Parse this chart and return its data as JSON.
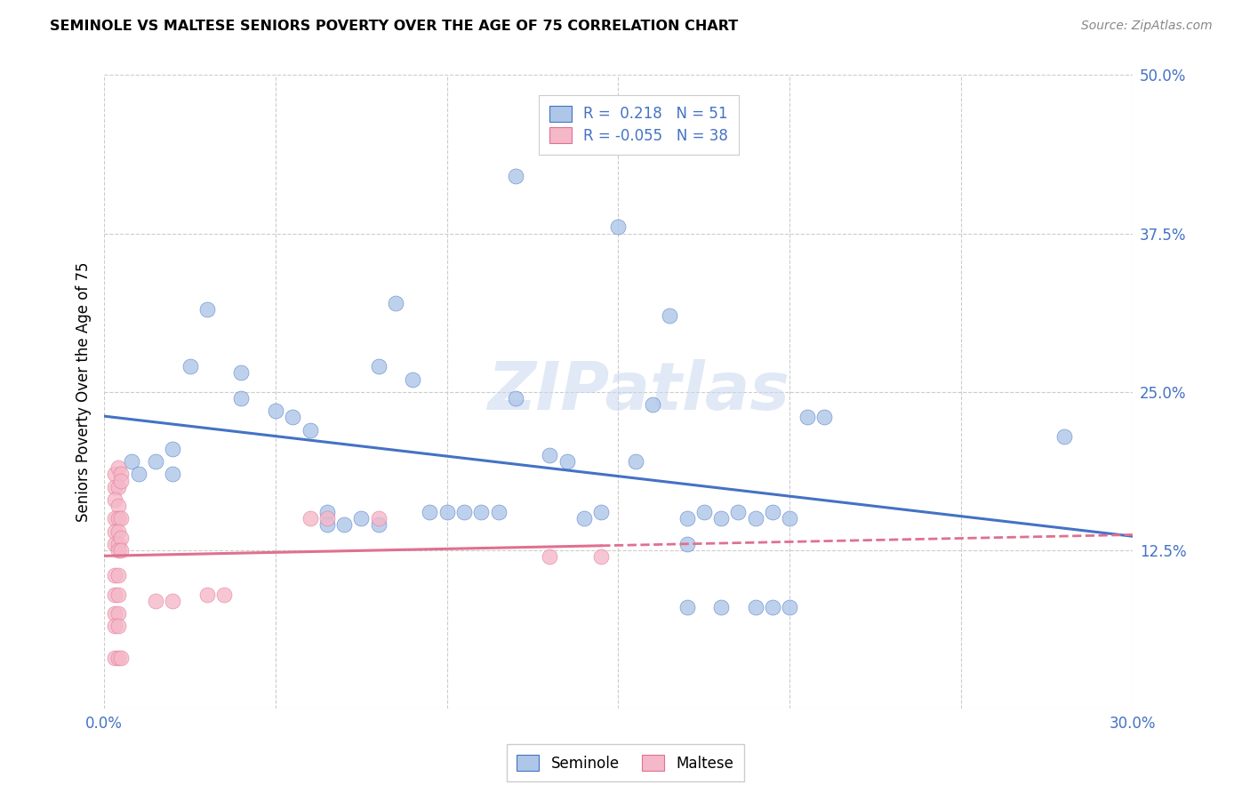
{
  "title": "SEMINOLE VS MALTESE SENIORS POVERTY OVER THE AGE OF 75 CORRELATION CHART",
  "source": "Source: ZipAtlas.com",
  "ylabel": "Seniors Poverty Over the Age of 75",
  "xlim": [
    0.0,
    0.3
  ],
  "ylim": [
    0.0,
    0.5
  ],
  "xticks": [
    0.0,
    0.05,
    0.1,
    0.15,
    0.2,
    0.25,
    0.3
  ],
  "yticks": [
    0.0,
    0.125,
    0.25,
    0.375,
    0.5
  ],
  "ytick_labels": [
    "",
    "12.5%",
    "25.0%",
    "37.5%",
    "50.0%"
  ],
  "xtick_labels": [
    "0.0%",
    "",
    "",
    "",
    "",
    "",
    "30.0%"
  ],
  "seminole_R": 0.218,
  "seminole_N": 51,
  "maltese_R": -0.055,
  "maltese_N": 38,
  "seminole_color": "#aec6e8",
  "maltese_color": "#f4b8c8",
  "trendline_seminole_color": "#4472c4",
  "trendline_maltese_color": "#e07090",
  "watermark": "ZIPatlas",
  "seminole_scatter": [
    [
      0.008,
      0.195
    ],
    [
      0.01,
      0.185
    ],
    [
      0.015,
      0.195
    ],
    [
      0.02,
      0.205
    ],
    [
      0.02,
      0.185
    ],
    [
      0.025,
      0.27
    ],
    [
      0.03,
      0.315
    ],
    [
      0.04,
      0.245
    ],
    [
      0.04,
      0.265
    ],
    [
      0.05,
      0.235
    ],
    [
      0.055,
      0.23
    ],
    [
      0.06,
      0.22
    ],
    [
      0.065,
      0.155
    ],
    [
      0.065,
      0.145
    ],
    [
      0.07,
      0.145
    ],
    [
      0.075,
      0.15
    ],
    [
      0.08,
      0.145
    ],
    [
      0.08,
      0.27
    ],
    [
      0.085,
      0.32
    ],
    [
      0.09,
      0.26
    ],
    [
      0.095,
      0.155
    ],
    [
      0.1,
      0.155
    ],
    [
      0.105,
      0.155
    ],
    [
      0.11,
      0.155
    ],
    [
      0.115,
      0.155
    ],
    [
      0.12,
      0.245
    ],
    [
      0.12,
      0.42
    ],
    [
      0.13,
      0.2
    ],
    [
      0.135,
      0.195
    ],
    [
      0.14,
      0.15
    ],
    [
      0.145,
      0.155
    ],
    [
      0.15,
      0.38
    ],
    [
      0.155,
      0.195
    ],
    [
      0.16,
      0.24
    ],
    [
      0.165,
      0.31
    ],
    [
      0.17,
      0.15
    ],
    [
      0.17,
      0.08
    ],
    [
      0.175,
      0.155
    ],
    [
      0.18,
      0.15
    ],
    [
      0.18,
      0.08
    ],
    [
      0.185,
      0.155
    ],
    [
      0.19,
      0.15
    ],
    [
      0.19,
      0.08
    ],
    [
      0.195,
      0.155
    ],
    [
      0.195,
      0.08
    ],
    [
      0.2,
      0.15
    ],
    [
      0.2,
      0.08
    ],
    [
      0.205,
      0.23
    ],
    [
      0.21,
      0.23
    ],
    [
      0.28,
      0.215
    ],
    [
      0.17,
      0.13
    ]
  ],
  "maltese_scatter": [
    [
      0.003,
      0.185
    ],
    [
      0.004,
      0.19
    ],
    [
      0.005,
      0.185
    ],
    [
      0.003,
      0.175
    ],
    [
      0.004,
      0.175
    ],
    [
      0.005,
      0.18
    ],
    [
      0.003,
      0.165
    ],
    [
      0.004,
      0.16
    ],
    [
      0.003,
      0.15
    ],
    [
      0.004,
      0.15
    ],
    [
      0.005,
      0.15
    ],
    [
      0.003,
      0.14
    ],
    [
      0.004,
      0.14
    ],
    [
      0.003,
      0.13
    ],
    [
      0.004,
      0.13
    ],
    [
      0.005,
      0.135
    ],
    [
      0.004,
      0.125
    ],
    [
      0.005,
      0.125
    ],
    [
      0.003,
      0.105
    ],
    [
      0.004,
      0.105
    ],
    [
      0.003,
      0.09
    ],
    [
      0.004,
      0.09
    ],
    [
      0.003,
      0.075
    ],
    [
      0.004,
      0.075
    ],
    [
      0.003,
      0.065
    ],
    [
      0.004,
      0.065
    ],
    [
      0.003,
      0.04
    ],
    [
      0.004,
      0.04
    ],
    [
      0.005,
      0.04
    ],
    [
      0.015,
      0.085
    ],
    [
      0.02,
      0.085
    ],
    [
      0.03,
      0.09
    ],
    [
      0.035,
      0.09
    ],
    [
      0.06,
      0.15
    ],
    [
      0.065,
      0.15
    ],
    [
      0.08,
      0.15
    ],
    [
      0.13,
      0.12
    ],
    [
      0.145,
      0.12
    ]
  ]
}
